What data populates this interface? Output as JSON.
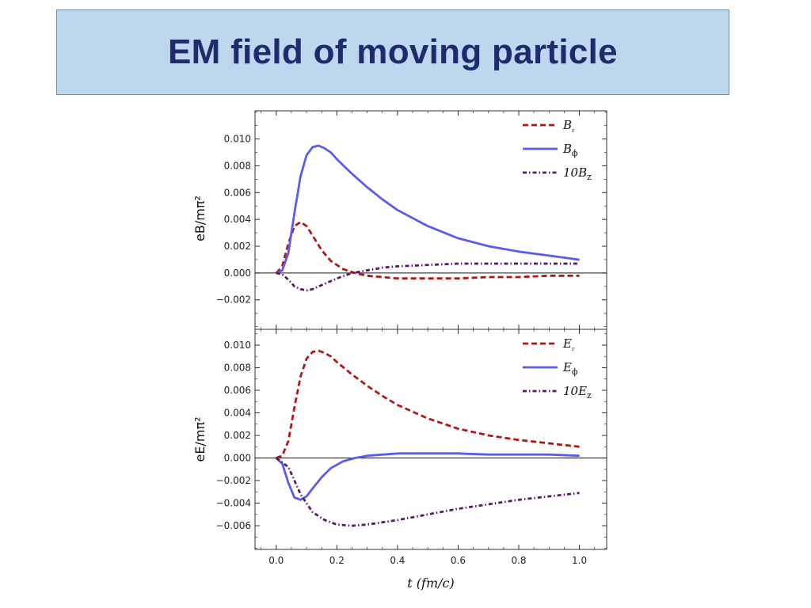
{
  "slide": {
    "title": "EM field of moving particle"
  },
  "chart_data": [
    {
      "type": "line",
      "ylabel": "eB/mπ²",
      "ylim": [
        -0.0042,
        0.0121
      ],
      "xlim": [
        -0.07,
        1.09
      ],
      "yticks": [
        0.01,
        0.008,
        0.006,
        0.004,
        0.002,
        0.0,
        -0.002
      ],
      "ytick_labels": [
        "0.010",
        "0.008",
        "0.006",
        "0.004",
        "0.002",
        "0.000",
        "−0.002"
      ],
      "legend_position": "top-right",
      "series": [
        {
          "name": "Bᵣ",
          "color": "#b01818",
          "dash": "dashed",
          "x": [
            0.0,
            0.02,
            0.04,
            0.06,
            0.08,
            0.1,
            0.12,
            0.15,
            0.18,
            0.22,
            0.26,
            0.3,
            0.4,
            0.5,
            0.6,
            0.7,
            0.8,
            0.9,
            1.0
          ],
          "y": [
            0.0,
            0.0005,
            0.0022,
            0.0035,
            0.0038,
            0.0035,
            0.0028,
            0.0017,
            0.0009,
            0.0003,
            0.0,
            -0.0002,
            -0.0004,
            -0.0004,
            -0.0004,
            -0.0003,
            -0.0003,
            -0.0002,
            -0.0002
          ]
        },
        {
          "name": "Bϕ",
          "color": "#5b5bf0",
          "dash": "solid",
          "x": [
            0.0,
            0.02,
            0.04,
            0.06,
            0.08,
            0.1,
            0.12,
            0.14,
            0.16,
            0.18,
            0.2,
            0.25,
            0.3,
            0.35,
            0.4,
            0.5,
            0.6,
            0.7,
            0.8,
            0.9,
            1.0
          ],
          "y": [
            0.0,
            0.0002,
            0.0015,
            0.0045,
            0.0072,
            0.0088,
            0.0094,
            0.0095,
            0.0093,
            0.009,
            0.0085,
            0.0074,
            0.0064,
            0.0055,
            0.0047,
            0.0035,
            0.0026,
            0.002,
            0.0016,
            0.0013,
            0.001
          ]
        },
        {
          "name": "10B_z",
          "color": "#5a1a6a",
          "dash": "dashdot",
          "x": [
            0.0,
            0.02,
            0.04,
            0.06,
            0.08,
            0.1,
            0.12,
            0.15,
            0.2,
            0.25,
            0.3,
            0.35,
            0.4,
            0.5,
            0.6,
            0.7,
            0.8,
            0.9,
            1.0
          ],
          "y": [
            0.0,
            -0.0001,
            -0.0005,
            -0.001,
            -0.0012,
            -0.0013,
            -0.0012,
            -0.0009,
            -0.0004,
            0.0,
            0.0002,
            0.0004,
            0.0005,
            0.0006,
            0.0007,
            0.0007,
            0.0007,
            0.0007,
            0.0007
          ]
        }
      ]
    },
    {
      "type": "line",
      "ylabel": "eE/mπ²",
      "xlabel": "t (fm/c)",
      "ylim": [
        -0.0081,
        0.0114
      ],
      "xlim": [
        -0.07,
        1.09
      ],
      "yticks": [
        0.01,
        0.008,
        0.006,
        0.004,
        0.002,
        0.0,
        -0.002,
        -0.004,
        -0.006
      ],
      "ytick_labels": [
        "0.010",
        "0.008",
        "0.006",
        "0.004",
        "0.002",
        "0.000",
        "−0.002",
        "−0.004",
        "−0.006"
      ],
      "xticks": [
        0.0,
        0.2,
        0.4,
        0.6,
        0.8,
        1.0
      ],
      "xtick_labels": [
        "0.0",
        "0.2",
        "0.4",
        "0.6",
        "0.8",
        "1.0"
      ],
      "legend_position": "top-right",
      "series": [
        {
          "name": "Eᵣ",
          "color": "#b01818",
          "dash": "dashed",
          "x": [
            0.0,
            0.02,
            0.04,
            0.06,
            0.08,
            0.1,
            0.12,
            0.14,
            0.16,
            0.18,
            0.2,
            0.25,
            0.3,
            0.35,
            0.4,
            0.5,
            0.6,
            0.7,
            0.8,
            0.9,
            1.0
          ],
          "y": [
            0.0,
            0.0002,
            0.0015,
            0.0045,
            0.0072,
            0.0088,
            0.0094,
            0.0095,
            0.0093,
            0.009,
            0.0085,
            0.0074,
            0.0064,
            0.0055,
            0.0047,
            0.0035,
            0.0026,
            0.002,
            0.0016,
            0.0013,
            0.001
          ]
        },
        {
          "name": "Eϕ",
          "color": "#5b5bf0",
          "dash": "solid",
          "x": [
            0.0,
            0.02,
            0.04,
            0.06,
            0.08,
            0.1,
            0.12,
            0.15,
            0.18,
            0.22,
            0.26,
            0.3,
            0.4,
            0.5,
            0.6,
            0.7,
            0.8,
            0.9,
            1.0
          ],
          "y": [
            0.0,
            -0.0005,
            -0.0022,
            -0.0035,
            -0.0037,
            -0.0034,
            -0.0027,
            -0.0017,
            -0.0009,
            -0.0003,
            0.0,
            0.0002,
            0.0004,
            0.0004,
            0.0004,
            0.0003,
            0.0003,
            0.0003,
            0.0002
          ]
        },
        {
          "name": "10E_z",
          "color": "#5a1a6a",
          "dash": "dashdot",
          "x": [
            0.0,
            0.04,
            0.08,
            0.12,
            0.16,
            0.2,
            0.25,
            0.3,
            0.35,
            0.4,
            0.5,
            0.6,
            0.7,
            0.8,
            0.9,
            1.0
          ],
          "y": [
            0.0,
            -0.0008,
            -0.0032,
            -0.0048,
            -0.0055,
            -0.0059,
            -0.006,
            -0.0059,
            -0.0057,
            -0.0055,
            -0.005,
            -0.0045,
            -0.0041,
            -0.0037,
            -0.0034,
            -0.0031
          ]
        }
      ]
    }
  ]
}
